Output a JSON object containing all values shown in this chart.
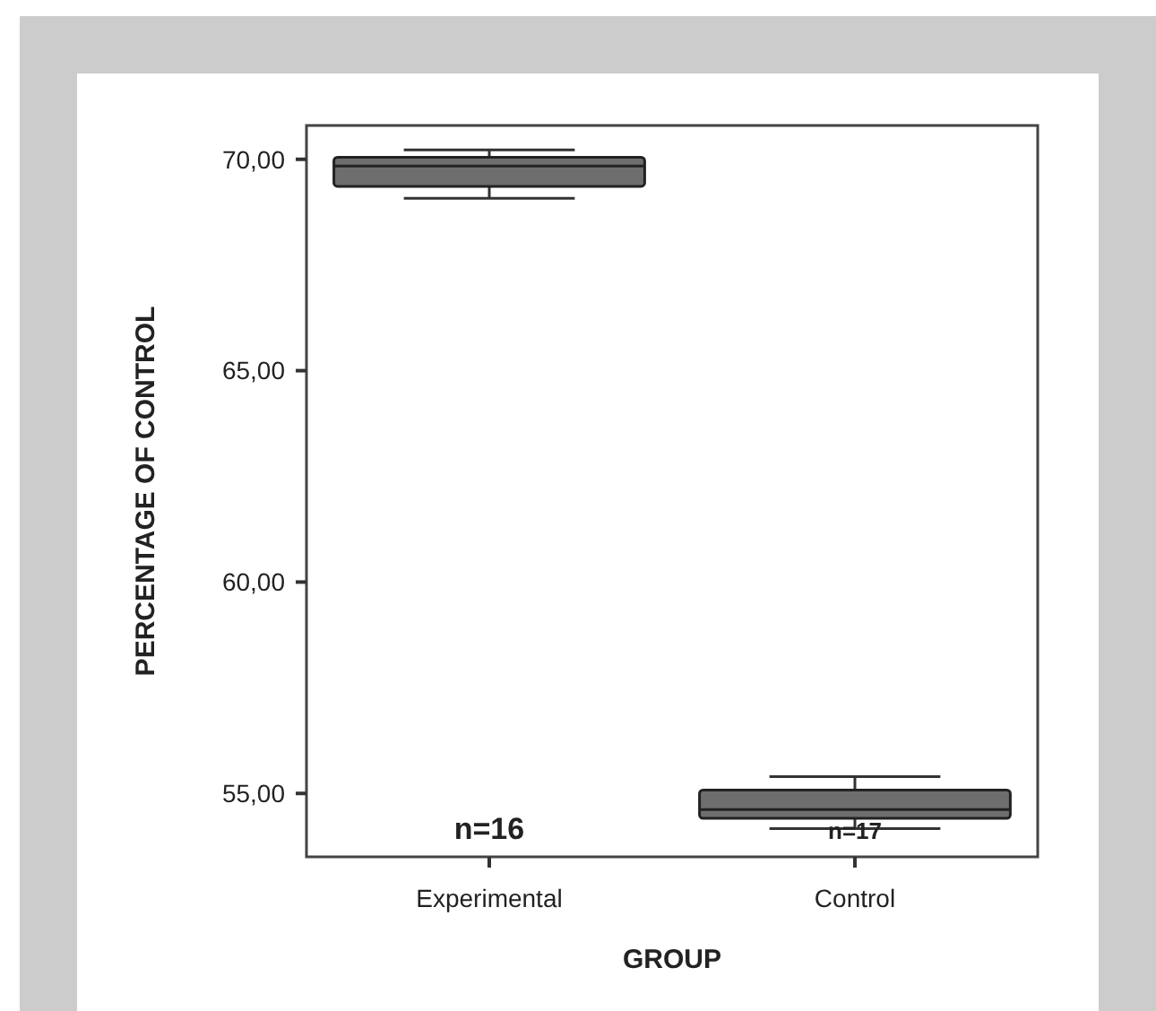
{
  "chart_data": {
    "type": "box",
    "xlabel": "GROUP",
    "ylabel": "PERCENTAGE OF CONTROL",
    "categories": [
      "Experimental",
      "Control"
    ],
    "color": "#6e6e6e",
    "boxes": [
      {
        "low": 69.08,
        "q1": 69.36,
        "median": 69.84,
        "q3": 70.05,
        "high": 70.22
      },
      {
        "low": 54.17,
        "q1": 54.41,
        "median": 54.62,
        "q3": 55.08,
        "high": 55.4
      }
    ],
    "ylim": [
      53.5,
      70.8
    ],
    "yticks": [
      {
        "value": 55,
        "label": "55,00"
      },
      {
        "value": 60,
        "label": "60,00"
      },
      {
        "value": 65,
        "label": "65,00"
      },
      {
        "value": 70,
        "label": "70,00"
      }
    ],
    "annotations": [
      "n=16",
      "n=17"
    ],
    "grid": false
  }
}
